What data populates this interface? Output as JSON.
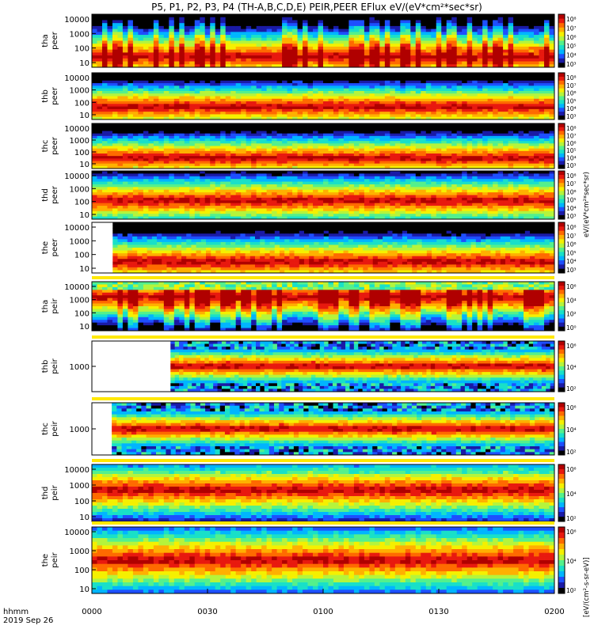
{
  "chart_data": {
    "type": "heatmap",
    "title": "P5, P1, P2, P3, P4 (TH-A,B,C,D,E) PEIR,PEER EFlux eV/(eV*cm²*sec*sr)",
    "time_axis": {
      "ticks": [
        "0000",
        "0030",
        "0100",
        "0130",
        "0200"
      ],
      "label_line1": "hhmm",
      "label_line2": "2019 Sep 26"
    },
    "colorbar_label_top": "eV/(eV*cm²*sec*sr)",
    "colorbar_label_bottom": "[eV/(cm²-s-sr-eV)]",
    "panels": [
      {
        "id": "tha-peer",
        "label_line1": "tha",
        "label_line2": "peer",
        "yticks": [
          "10000",
          "1000",
          "100",
          "10"
        ],
        "ylog": true,
        "cbar_ticks": [
          "10⁸",
          "10⁷",
          "10⁶",
          "10⁵",
          "10⁴",
          "10³"
        ],
        "start_frac": 0.0,
        "peak_band": 0.82,
        "state": "active"
      },
      {
        "id": "thb-peer",
        "label_line1": "thb",
        "label_line2": "peer",
        "yticks": [
          "10000",
          "1000",
          "100",
          "10"
        ],
        "ylog": true,
        "cbar_ticks": [
          "10⁸",
          "10⁷",
          "10⁶",
          "10⁵",
          "10⁴",
          "10³"
        ],
        "start_frac": 0.0,
        "peak_band": 0.75,
        "state": "steady"
      },
      {
        "id": "thc-peer",
        "label_line1": "thc",
        "label_line2": "peer",
        "yticks": [
          "10000",
          "1000",
          "100",
          "10"
        ],
        "ylog": true,
        "cbar_ticks": [
          "10⁸",
          "10⁷",
          "10⁶",
          "10⁵",
          "10⁴",
          "10³"
        ],
        "start_frac": 0.0,
        "peak_band": 0.78,
        "state": "steady"
      },
      {
        "id": "thd-peer",
        "label_line1": "thd",
        "label_line2": "peer",
        "yticks": [
          "10000",
          "1000",
          "100",
          "10"
        ],
        "ylog": true,
        "cbar_ticks": [
          "10⁸",
          "10⁷",
          "10⁶",
          "10⁵",
          "10⁴",
          "10³"
        ],
        "start_frac": 0.0,
        "peak_band": 0.62,
        "state": "steady"
      },
      {
        "id": "the-peer",
        "label_line1": "the",
        "label_line2": "peer",
        "yticks": [
          "10000",
          "1000",
          "100",
          "10"
        ],
        "ylog": true,
        "cbar_ticks": [
          "10⁸",
          "10⁷",
          "10⁶",
          "10⁵",
          "10⁴",
          "10³"
        ],
        "start_frac": 0.045,
        "peak_band": 0.8,
        "state": "steady"
      },
      {
        "id": "tha-peir",
        "label_line1": "tha",
        "label_line2": "peir",
        "yticks": [
          "10000",
          "1000",
          "100",
          "10"
        ],
        "ylog": true,
        "cbar_ticks": [
          "10⁶",
          "10⁴",
          "10²",
          "10⁰"
        ],
        "start_frac": 0.0,
        "peak_band": 0.3,
        "state": "active"
      },
      {
        "id": "thb-peir",
        "label_line1": "thb",
        "label_line2": "peir",
        "yticks": [
          "1000"
        ],
        "ylog": true,
        "cbar_ticks": [
          "10⁶",
          "10⁴",
          "10²"
        ],
        "start_frac": 0.17,
        "peak_band": 0.5,
        "state": "banded"
      },
      {
        "id": "thc-peir",
        "label_line1": "thc",
        "label_line2": "peir",
        "yticks": [
          "1000"
        ],
        "ylog": true,
        "cbar_ticks": [
          "10⁶",
          "10⁴",
          "10²"
        ],
        "start_frac": 0.043,
        "peak_band": 0.5,
        "state": "banded"
      },
      {
        "id": "thd-peir",
        "label_line1": "thd",
        "label_line2": "peir",
        "yticks": [
          "10000",
          "1000",
          "100",
          "10"
        ],
        "ylog": true,
        "cbar_ticks": [
          "10⁶",
          "10⁴",
          "10²"
        ],
        "start_frac": 0.0,
        "peak_band": 0.45,
        "state": "steady"
      },
      {
        "id": "the-peir",
        "label_line1": "the",
        "label_line2": "peir",
        "yticks": [
          "10000",
          "1000",
          "100",
          "10"
        ],
        "ylog": true,
        "cbar_ticks": [
          "10⁶",
          "10⁴",
          "10²"
        ],
        "start_frac": 0.0,
        "peak_band": 0.5,
        "state": "steady"
      }
    ],
    "colorscale": [
      "#000000",
      "#1a1aa6",
      "#1e4fff",
      "#00b5ff",
      "#19e0c8",
      "#54f08c",
      "#b5f43c",
      "#f5f000",
      "#ffb000",
      "#ff6a00",
      "#e8190f",
      "#b00000"
    ]
  }
}
